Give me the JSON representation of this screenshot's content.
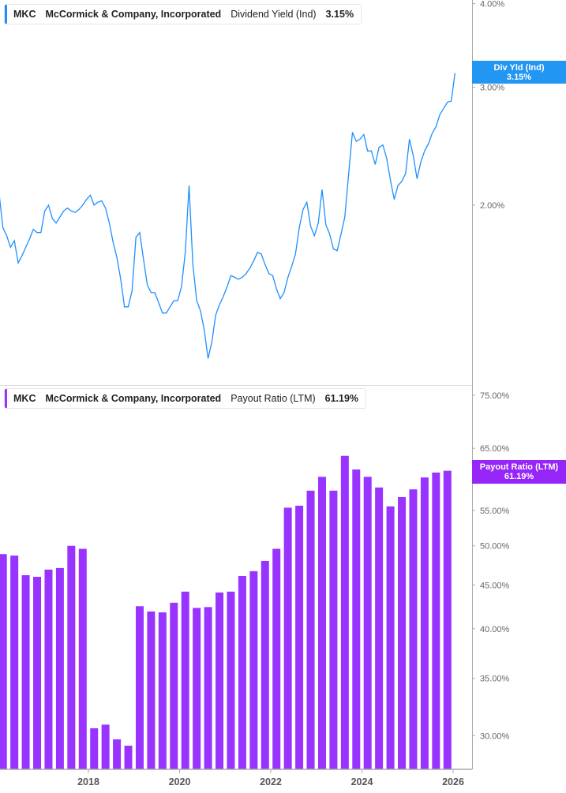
{
  "colors": {
    "yield": "#1e8fff",
    "payout": "#9933ff",
    "axis": "#aaaaaa"
  },
  "top_legend": {
    "ticker": "MKC",
    "company": "McCormick & Company, Incorporated",
    "metric": "Dividend Yield (Ind)",
    "value": "3.15%"
  },
  "top_tag": {
    "label": "Div Yld (Ind)",
    "value": "3.15%"
  },
  "bottom_legend": {
    "ticker": "MKC",
    "company": "McCormick & Company, Incorporated",
    "metric": "Payout Ratio (LTM)",
    "value": "61.19%"
  },
  "bottom_tag": {
    "label": "Payout Ratio (LTM)",
    "value": "61.19%"
  },
  "x_ticks": [
    "2018",
    "2020",
    "2022",
    "2024",
    "2026"
  ],
  "chart_data": [
    {
      "type": "line",
      "series_label": "Dividend Yield (Ind)",
      "yscale": "log",
      "ylim": [
        1.08,
        4.05
      ],
      "y_ticks": [
        "4.00%",
        "3.00%",
        "2.00%"
      ],
      "y_tick_values": [
        4.0,
        3.0,
        2.0
      ],
      "x": [
        "2016-01",
        "2016-02",
        "2016-03",
        "2016-04",
        "2016-05",
        "2016-06",
        "2016-07",
        "2016-08",
        "2016-09",
        "2016-10",
        "2016-11",
        "2016-12",
        "2017-01",
        "2017-02",
        "2017-03",
        "2017-04",
        "2017-05",
        "2017-06",
        "2017-07",
        "2017-08",
        "2017-09",
        "2017-10",
        "2017-11",
        "2017-12",
        "2018-01",
        "2018-02",
        "2018-03",
        "2018-04",
        "2018-05",
        "2018-06",
        "2018-07",
        "2018-08",
        "2018-09",
        "2018-10",
        "2018-11",
        "2018-12",
        "2019-01",
        "2019-02",
        "2019-03",
        "2019-04",
        "2019-05",
        "2019-06",
        "2019-07",
        "2019-08",
        "2019-09",
        "2019-10",
        "2019-11",
        "2019-12",
        "2020-01",
        "2020-02",
        "2020-03",
        "2020-04",
        "2020-05",
        "2020-06",
        "2020-07",
        "2020-08",
        "2020-09",
        "2020-10",
        "2020-11",
        "2020-12",
        "2021-01",
        "2021-02",
        "2021-03",
        "2021-04",
        "2021-05",
        "2021-06",
        "2021-07",
        "2021-08",
        "2021-09",
        "2021-10",
        "2021-11",
        "2021-12",
        "2022-01",
        "2022-02",
        "2022-03",
        "2022-04",
        "2022-05",
        "2022-06",
        "2022-07",
        "2022-08",
        "2022-09",
        "2022-10",
        "2022-11",
        "2022-12",
        "2023-01",
        "2023-02",
        "2023-03",
        "2023-04",
        "2023-05",
        "2023-06",
        "2023-07",
        "2023-08",
        "2023-09",
        "2023-10",
        "2023-11",
        "2023-12",
        "2024-01",
        "2024-02",
        "2024-03",
        "2024-04",
        "2024-05",
        "2024-06",
        "2024-07",
        "2024-08",
        "2024-09",
        "2024-10",
        "2024-11",
        "2024-12",
        "2025-01",
        "2025-02",
        "2025-03",
        "2025-04",
        "2025-05",
        "2025-06",
        "2025-07",
        "2025-08",
        "2025-09",
        "2025-10",
        "2025-11",
        "2025-12",
        "2026-01"
      ],
      "values": [
        2.08,
        1.85,
        1.8,
        1.73,
        1.77,
        1.64,
        1.68,
        1.73,
        1.78,
        1.84,
        1.82,
        1.82,
        1.96,
        2.0,
        1.91,
        1.88,
        1.92,
        1.96,
        1.98,
        1.96,
        1.95,
        1.97,
        2.0,
        2.04,
        2.07,
        2.0,
        2.02,
        2.03,
        1.98,
        1.88,
        1.76,
        1.67,
        1.55,
        1.41,
        1.41,
        1.49,
        1.79,
        1.82,
        1.66,
        1.52,
        1.48,
        1.48,
        1.43,
        1.38,
        1.38,
        1.41,
        1.44,
        1.44,
        1.51,
        1.7,
        2.14,
        1.63,
        1.44,
        1.39,
        1.3,
        1.18,
        1.25,
        1.37,
        1.42,
        1.46,
        1.51,
        1.57,
        1.56,
        1.55,
        1.56,
        1.58,
        1.61,
        1.65,
        1.7,
        1.69,
        1.63,
        1.58,
        1.57,
        1.5,
        1.45,
        1.48,
        1.56,
        1.62,
        1.69,
        1.85,
        1.97,
        2.02,
        1.86,
        1.8,
        1.88,
        2.11,
        1.87,
        1.81,
        1.72,
        1.71,
        1.81,
        1.92,
        2.23,
        2.57,
        2.49,
        2.51,
        2.55,
        2.41,
        2.41,
        2.3,
        2.44,
        2.46,
        2.35,
        2.18,
        2.04,
        2.14,
        2.17,
        2.23,
        2.51,
        2.37,
        2.19,
        2.32,
        2.41,
        2.47,
        2.56,
        2.62,
        2.73,
        2.79,
        2.85,
        2.86,
        3.15
      ]
    },
    {
      "type": "bar",
      "series_label": "Payout Ratio (LTM)",
      "yscale": "log",
      "ylim": [
        27.4,
        76.9
      ],
      "y_ticks": [
        "75.00%",
        "65.00%",
        "55.00%",
        "50.00%",
        "45.00%",
        "40.00%",
        "35.00%",
        "30.00%"
      ],
      "y_tick_values": [
        75,
        65,
        55,
        50,
        45,
        40,
        35,
        30
      ],
      "x": [
        "2016-02",
        "2016-05",
        "2016-08",
        "2016-11",
        "2017-02",
        "2017-05",
        "2017-08",
        "2017-11",
        "2018-02",
        "2018-05",
        "2018-08",
        "2018-11",
        "2019-02",
        "2019-05",
        "2019-08",
        "2019-11",
        "2020-02",
        "2020-05",
        "2020-08",
        "2020-11",
        "2021-02",
        "2021-05",
        "2021-08",
        "2021-11",
        "2022-02",
        "2022-05",
        "2022-08",
        "2022-11",
        "2023-02",
        "2023-05",
        "2023-08",
        "2023-11",
        "2024-02",
        "2024-05",
        "2024-08",
        "2024-11",
        "2025-02",
        "2025-05",
        "2025-08",
        "2025-11"
      ],
      "values": [
        48.9,
        48.7,
        46.2,
        46.0,
        46.9,
        47.1,
        50.0,
        49.6,
        30.6,
        30.9,
        29.7,
        29.2,
        42.5,
        41.9,
        41.8,
        42.9,
        44.2,
        42.3,
        42.4,
        44.1,
        44.2,
        46.1,
        46.7,
        48.0,
        49.6,
        55.4,
        55.7,
        58.0,
        60.2,
        58.0,
        63.7,
        61.4,
        60.2,
        58.5,
        55.6,
        57.0,
        58.2,
        60.1,
        60.9,
        61.19
      ]
    }
  ]
}
